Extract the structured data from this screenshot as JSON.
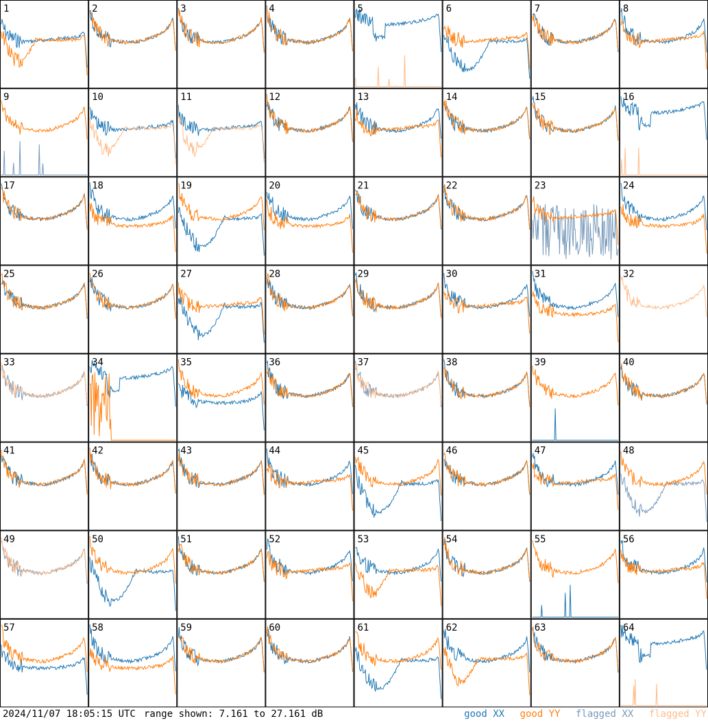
{
  "footer": {
    "timestamp": "2024/11/07 18:05:15 UTC",
    "range_text": "range shown: 7.161 to 27.161 dB"
  },
  "legend": {
    "good_xx": "good XX",
    "good_yy": "good YY",
    "flagged_xx": "flagged XX",
    "flagged_yy": "flagged YY"
  },
  "colors": {
    "good_xx": "#1f77b4",
    "good_yy": "#ff7f0e",
    "flagged_xx": "#7799bb",
    "flagged_yy": "#ffbb88"
  },
  "chart_data": {
    "type": "line",
    "grid": "8x8 small multiples",
    "ylim_db": [
      7.161,
      27.161
    ],
    "panels": [
      {
        "id": "1",
        "xx": "flat",
        "yy": "dip",
        "yy_flag": false,
        "xx_flag": false
      },
      {
        "id": "2",
        "xx": "normal",
        "yy": "normal",
        "xx_flag": false,
        "yy_flag": false
      },
      {
        "id": "3",
        "xx": "normal",
        "yy": "normal",
        "xx_flag": false,
        "yy_flag": false
      },
      {
        "id": "4",
        "xx": "normal",
        "yy": "normal",
        "xx_flag": false,
        "yy_flag": false
      },
      {
        "id": "5",
        "xx": "high",
        "yy": "zero",
        "xx_flag": false,
        "yy_flag": true
      },
      {
        "id": "6",
        "xx": "deep",
        "yy": "flat",
        "xx_flag": false,
        "yy_flag": false
      },
      {
        "id": "7",
        "xx": "normal",
        "yy": "normal",
        "xx_flag": false,
        "yy_flag": false
      },
      {
        "id": "8",
        "xx": "normal",
        "yy": "flat",
        "xx_flag": false,
        "yy_flag": false
      },
      {
        "id": "9",
        "xx": "zero",
        "yy": "normal",
        "xx_flag": true,
        "yy_flag": false
      },
      {
        "id": "10",
        "xx": "flat",
        "yy": "dip",
        "xx_flag": false,
        "yy_flag": true
      },
      {
        "id": "11",
        "xx": "flat",
        "yy": "dip",
        "xx_flag": false,
        "yy_flag": true
      },
      {
        "id": "12",
        "xx": "normal",
        "yy": "normal",
        "xx_flag": false,
        "yy_flag": false
      },
      {
        "id": "13",
        "xx": "normal",
        "yy": "flat",
        "xx_flag": false,
        "yy_flag": false
      },
      {
        "id": "14",
        "xx": "normal",
        "yy": "normal",
        "xx_flag": false,
        "yy_flag": false
      },
      {
        "id": "15",
        "xx": "normal",
        "yy": "normal",
        "xx_flag": false,
        "yy_flag": false
      },
      {
        "id": "16",
        "xx": "high",
        "yy": "zero",
        "xx_flag": false,
        "yy_flag": true
      },
      {
        "id": "17",
        "xx": "normal",
        "yy": "normal",
        "xx_flag": false,
        "yy_flag": false
      },
      {
        "id": "18",
        "xx": "normal",
        "yy": "lower",
        "xx_flag": false,
        "yy_flag": false
      },
      {
        "id": "19",
        "xx": "deep",
        "yy": "normal",
        "xx_flag": false,
        "yy_flag": false
      },
      {
        "id": "20",
        "xx": "normal",
        "yy": "lower",
        "xx_flag": false,
        "yy_flag": false
      },
      {
        "id": "21",
        "xx": "normal",
        "yy": "normal",
        "xx_flag": false,
        "yy_flag": false
      },
      {
        "id": "22",
        "xx": "normal",
        "yy": "normal",
        "xx_flag": false,
        "yy_flag": false
      },
      {
        "id": "23",
        "xx": "noise",
        "yy": "flat",
        "xx_flag": true,
        "yy_flag": false
      },
      {
        "id": "24",
        "xx": "normal",
        "yy": "lower",
        "xx_flag": false,
        "yy_flag": false
      },
      {
        "id": "25",
        "xx": "normal",
        "yy": "normal",
        "xx_flag": false,
        "yy_flag": false
      },
      {
        "id": "26",
        "xx": "normal",
        "yy": "normal",
        "xx_flag": false,
        "yy_flag": false
      },
      {
        "id": "27",
        "xx": "deep",
        "yy": "flat",
        "xx_flag": false,
        "yy_flag": false
      },
      {
        "id": "28",
        "xx": "normal",
        "yy": "normal",
        "xx_flag": false,
        "yy_flag": false
      },
      {
        "id": "29",
        "xx": "normal",
        "yy": "normal",
        "xx_flag": false,
        "yy_flag": false
      },
      {
        "id": "30",
        "xx": "normal",
        "yy": "flat",
        "xx_flag": false,
        "yy_flag": false
      },
      {
        "id": "31",
        "xx": "normal",
        "yy": "lower",
        "xx_flag": false,
        "yy_flag": false
      },
      {
        "id": "32",
        "xx": "none",
        "yy": "normal",
        "xx_flag": false,
        "yy_flag": true
      },
      {
        "id": "33",
        "xx": "normal",
        "yy": "normal",
        "xx_flag": true,
        "yy_flag": true
      },
      {
        "id": "34",
        "xx": "high",
        "yy": "spiky",
        "xx_flag": false,
        "yy_flag": false
      },
      {
        "id": "35",
        "xx": "lower",
        "yy": "normal",
        "xx_flag": false,
        "yy_flag": false
      },
      {
        "id": "36",
        "xx": "normal",
        "yy": "normal",
        "xx_flag": false,
        "yy_flag": false
      },
      {
        "id": "37",
        "xx": "normal",
        "yy": "normal",
        "xx_flag": true,
        "yy_flag": true
      },
      {
        "id": "38",
        "xx": "normal",
        "yy": "normal",
        "xx_flag": false,
        "yy_flag": false
      },
      {
        "id": "39",
        "xx": "zero",
        "yy": "normal",
        "xx_flag": false,
        "yy_flag": false
      },
      {
        "id": "40",
        "xx": "normal",
        "yy": "normal",
        "xx_flag": false,
        "yy_flag": false
      },
      {
        "id": "41",
        "xx": "normal",
        "yy": "normal",
        "xx_flag": false,
        "yy_flag": false
      },
      {
        "id": "42",
        "xx": "normal",
        "yy": "normal",
        "xx_flag": false,
        "yy_flag": false
      },
      {
        "id": "43",
        "xx": "normal",
        "yy": "normal",
        "xx_flag": false,
        "yy_flag": false
      },
      {
        "id": "44",
        "xx": "normal",
        "yy": "flat",
        "xx_flag": false,
        "yy_flag": false
      },
      {
        "id": "45",
        "xx": "deep",
        "yy": "normal",
        "xx_flag": false,
        "yy_flag": false
      },
      {
        "id": "46",
        "xx": "normal",
        "yy": "normal",
        "xx_flag": false,
        "yy_flag": false
      },
      {
        "id": "47",
        "xx": "normal",
        "yy": "flat",
        "xx_flag": false,
        "yy_flag": false
      },
      {
        "id": "48",
        "xx": "deep",
        "yy": "normal",
        "xx_flag": true,
        "yy_flag": false
      },
      {
        "id": "49",
        "xx": "normal",
        "yy": "normal",
        "xx_flag": true,
        "yy_flag": true
      },
      {
        "id": "50",
        "xx": "deep",
        "yy": "normal",
        "xx_flag": false,
        "yy_flag": false
      },
      {
        "id": "51",
        "xx": "normal",
        "yy": "normal",
        "xx_flag": false,
        "yy_flag": false
      },
      {
        "id": "52",
        "xx": "normal",
        "yy": "flat",
        "xx_flag": false,
        "yy_flag": false
      },
      {
        "id": "53",
        "xx": "normal",
        "yy": "dip",
        "xx_flag": false,
        "yy_flag": false
      },
      {
        "id": "54",
        "xx": "normal",
        "yy": "normal",
        "xx_flag": false,
        "yy_flag": false
      },
      {
        "id": "55",
        "xx": "zero",
        "yy": "normal",
        "xx_flag": false,
        "yy_flag": false
      },
      {
        "id": "56",
        "xx": "normal",
        "yy": "flat",
        "xx_flag": false,
        "yy_flag": false
      },
      {
        "id": "57",
        "xx": "lower",
        "yy": "normal",
        "xx_flag": false,
        "yy_flag": false
      },
      {
        "id": "58",
        "xx": "normal",
        "yy": "lower",
        "xx_flag": false,
        "yy_flag": false
      },
      {
        "id": "59",
        "xx": "normal",
        "yy": "normal",
        "xx_flag": false,
        "yy_flag": false
      },
      {
        "id": "60",
        "xx": "normal",
        "yy": "normal",
        "xx_flag": false,
        "yy_flag": false
      },
      {
        "id": "61",
        "xx": "deep",
        "yy": "normal",
        "xx_flag": false,
        "yy_flag": false
      },
      {
        "id": "62",
        "xx": "normal",
        "yy": "dip",
        "xx_flag": false,
        "yy_flag": false
      },
      {
        "id": "63",
        "xx": "normal",
        "yy": "normal",
        "xx_flag": false,
        "yy_flag": false
      },
      {
        "id": "64",
        "xx": "high",
        "yy": "zero",
        "xx_flag": false,
        "yy_flag": true
      }
    ]
  }
}
